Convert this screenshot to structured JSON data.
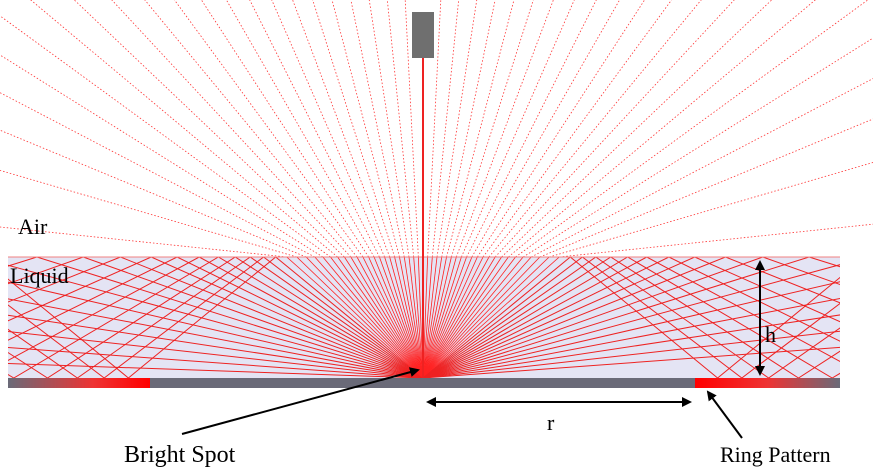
{
  "labels": {
    "air": "Air",
    "liquid": "Liquid",
    "height": "h",
    "radius": "r",
    "bright_spot": "Bright Spot",
    "ring_pattern": "Ring Pattern"
  }
}
